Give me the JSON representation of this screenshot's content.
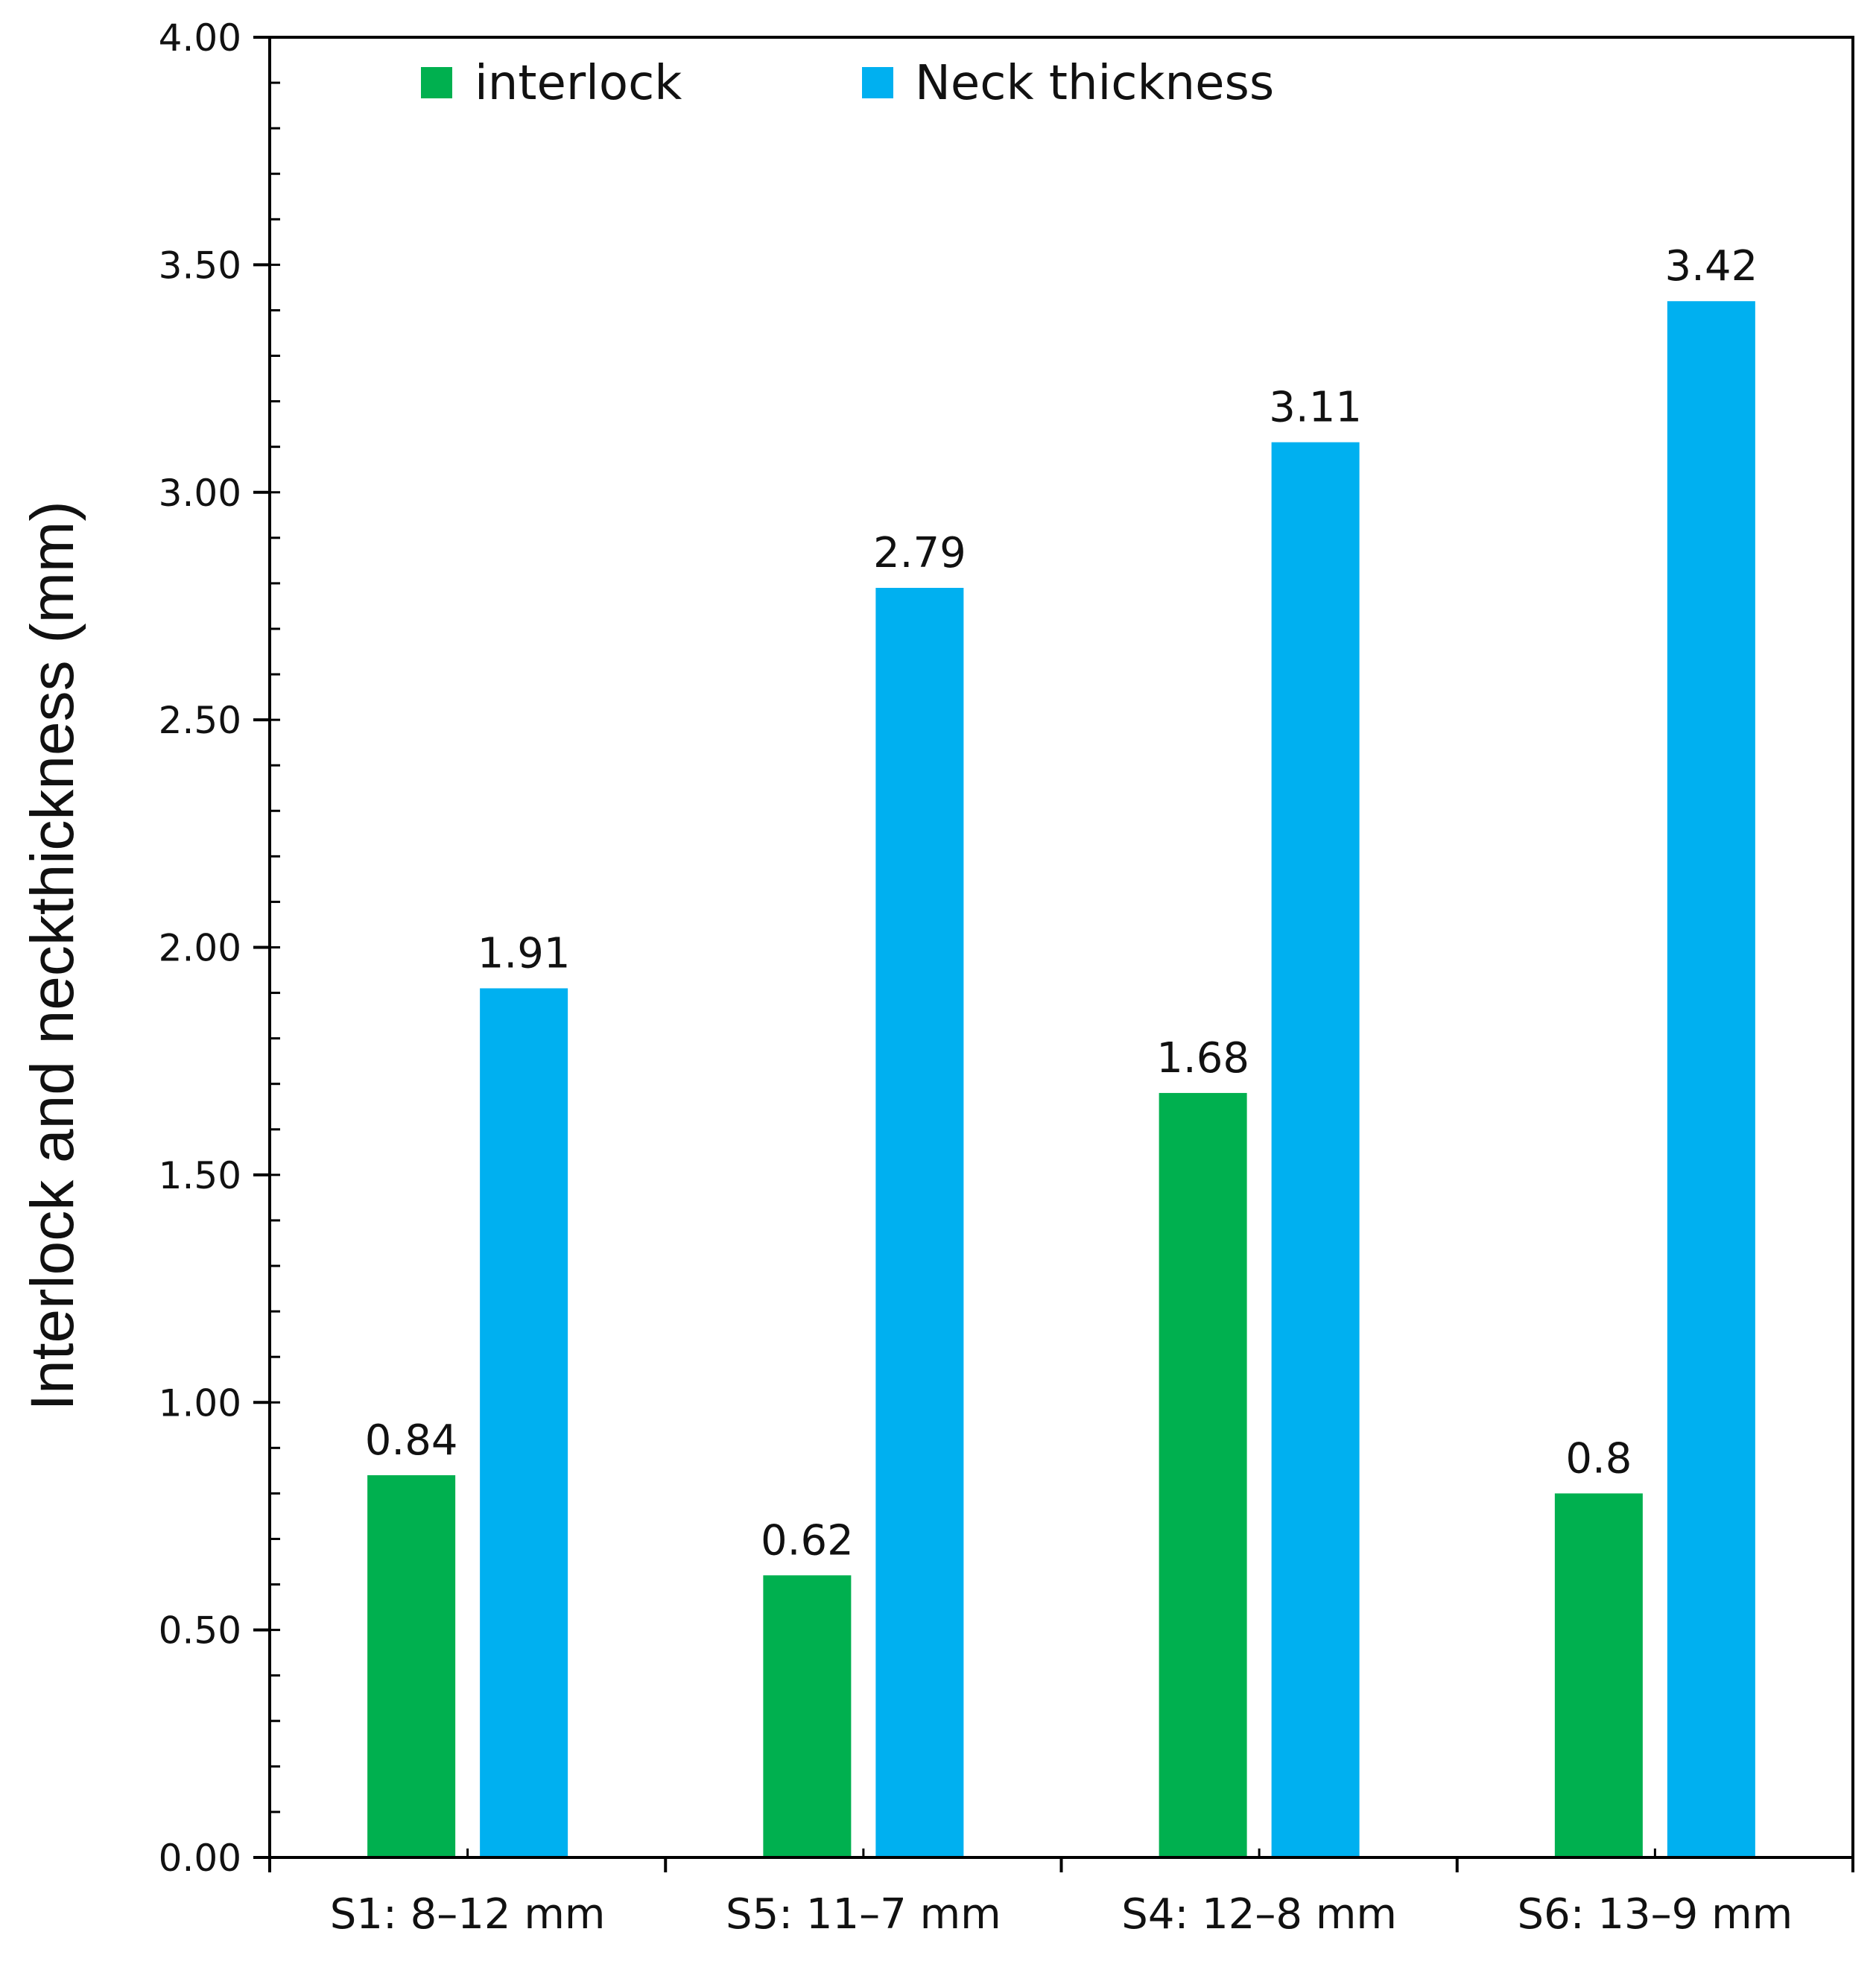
{
  "chart_data": {
    "type": "bar",
    "title": "",
    "xlabel": "",
    "ylabel": "Interlock and neckthickness (mm)",
    "ylim": [
      0,
      4
    ],
    "yticks": [
      "0.00",
      "0.50",
      "1.00",
      "1.50",
      "2.00",
      "2.50",
      "3.00",
      "3.50",
      "4.00"
    ],
    "minor_tick_step": 0.1,
    "categories": [
      "S1: 8–12 mm",
      "S5: 11–7 mm",
      "S4: 12–8 mm",
      "S6: 13–9 mm"
    ],
    "series": [
      {
        "name": "interlock",
        "color": "#00b04f",
        "values": [
          0.84,
          0.62,
          1.68,
          0.8
        ],
        "labels": [
          "0.84",
          "0.62",
          "1.68",
          "0.8"
        ]
      },
      {
        "name": "Neck thickness",
        "color": "#00b0f0",
        "values": [
          1.91,
          2.79,
          3.11,
          3.42
        ],
        "labels": [
          "1.91",
          "2.79",
          "3.11",
          "3.42"
        ]
      }
    ],
    "legend_position": "top-inside",
    "grid": false
  }
}
